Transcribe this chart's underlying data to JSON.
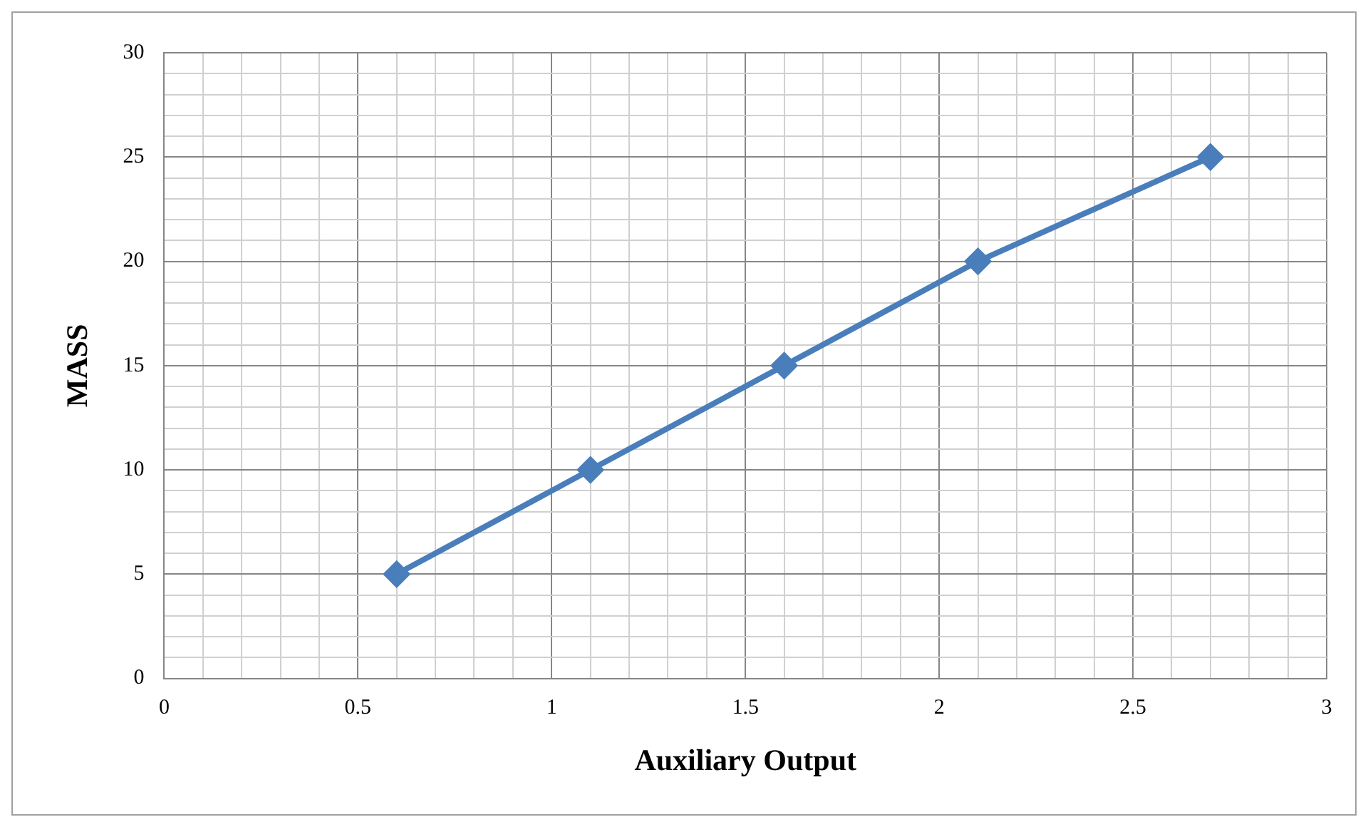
{
  "chart_data": {
    "type": "line",
    "xlabel": "Auxiliary Output",
    "ylabel": "MASS",
    "x": [
      0.6,
      1.1,
      1.6,
      2.1,
      2.7
    ],
    "series": [
      {
        "color": "#4a7ebb",
        "values": [
          5,
          10,
          15,
          20,
          25
        ]
      }
    ],
    "marker": "diamond",
    "line_style": "solid",
    "grid": true,
    "legend": false,
    "xlim": [
      0,
      3
    ],
    "ylim": [
      0,
      30
    ],
    "xticks": [
      0,
      {
        "value": 0.1,
        "label": null
      },
      {
        "value": 0.2,
        "label": null
      },
      {
        "value": 0.3,
        "label": null
      },
      {
        "value": 0.4,
        "label": null
      },
      0.5,
      {
        "value": 0.6,
        "label": null
      },
      {
        "value": 0.7,
        "label": null
      },
      {
        "value": 0.8,
        "label": null
      },
      {
        "value": 0.9,
        "label": null
      },
      1,
      {
        "value": 1.1,
        "label": null
      },
      {
        "value": 1.2,
        "label": null
      },
      {
        "value": 1.3,
        "label": null
      },
      {
        "value": 1.4,
        "label": null
      },
      1.5,
      {
        "value": 1.6,
        "label": null
      },
      {
        "value": 1.7,
        "label": null
      },
      {
        "value": 1.8,
        "label": null
      },
      {
        "value": 1.9,
        "label": null
      },
      2,
      {
        "value": 2.1,
        "label": null
      },
      {
        "value": 2.2,
        "label": null
      },
      {
        "value": 2.3,
        "label": null
      },
      {
        "value": 2.4,
        "label": null
      },
      2.5,
      {
        "value": 2.6,
        "label": null
      },
      {
        "value": 2.7,
        "label": null
      },
      {
        "value": 2.8,
        "label": null
      },
      {
        "value": 2.9,
        "label": null
      },
      3
    ],
    "yticks": [
      0,
      {
        "value": 1,
        "label": null
      },
      {
        "value": 2,
        "label": null
      },
      {
        "value": 3,
        "label": null
      },
      {
        "value": 4,
        "label": null
      },
      5,
      {
        "value": 6,
        "label": null
      },
      {
        "value": 7,
        "label": null
      },
      {
        "value": 8,
        "label": null
      },
      {
        "value": 9,
        "label": null
      },
      10,
      {
        "value": 11,
        "label": null
      },
      {
        "value": 12,
        "label": null
      },
      {
        "value": 13,
        "label": null
      },
      {
        "value": 14,
        "label": null
      },
      15,
      {
        "value": 16,
        "label": null
      },
      {
        "value": 17,
        "label": null
      },
      {
        "value": 18,
        "label": null
      },
      {
        "value": 19,
        "label": null
      },
      20,
      {
        "value": 21,
        "label": null
      },
      {
        "value": 22,
        "label": null
      },
      {
        "value": 23,
        "label": null
      },
      {
        "value": 24,
        "label": null
      },
      25,
      {
        "value": 26,
        "label": null
      },
      {
        "value": 27,
        "label": null
      },
      {
        "value": 28,
        "label": null
      },
      {
        "value": 29,
        "label": null
      },
      30
    ]
  }
}
